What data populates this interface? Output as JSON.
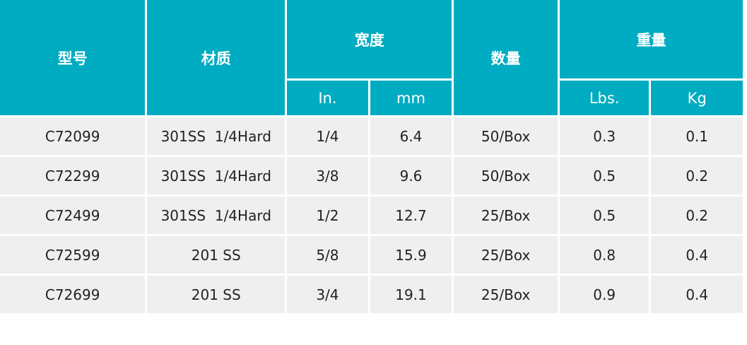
{
  "headers": {
    "model": "型号",
    "material": "材质",
    "width": "宽度",
    "width_in": "In.",
    "width_mm": "mm",
    "quantity": "数量",
    "weight": "重量",
    "weight_lbs": "Lbs.",
    "weight_kg": "Kg"
  },
  "rows": [
    [
      "C72099",
      "301SS  1/4Hard",
      "1/4",
      "6.4",
      "50/Box",
      "0.3",
      "0.1"
    ],
    [
      "C72299",
      "301SS  1/4Hard",
      "3/8",
      "9.6",
      "50/Box",
      "0.5",
      "0.2"
    ],
    [
      "C72499",
      "301SS  1/4Hard",
      "1/2",
      "12.7",
      "25/Box",
      "0.5",
      "0.2"
    ],
    [
      "C72599",
      "201 SS",
      "5/8",
      "15.9",
      "25/Box",
      "0.8",
      "0.4"
    ],
    [
      "C72699",
      "201 SS",
      "3/4",
      "19.1",
      "25/Box",
      "0.9",
      "0.4"
    ]
  ],
  "colors": {
    "header": "#00acc1",
    "row": "#efefef"
  }
}
